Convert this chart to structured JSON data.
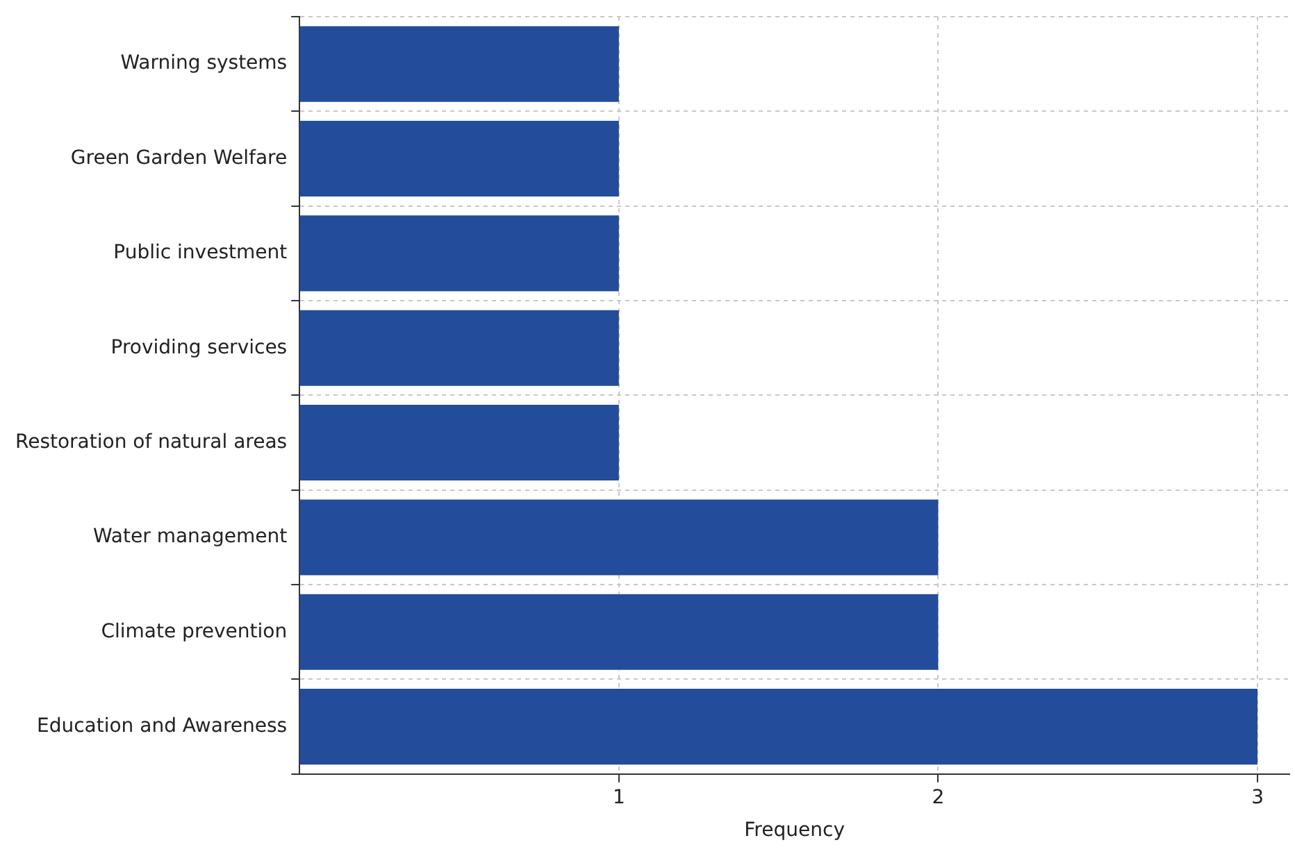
{
  "chart_data": {
    "type": "bar",
    "orientation": "horizontal",
    "xlabel": "Frequency",
    "categories": [
      "Warning systems",
      "Green Garden Welfare",
      "Public investment",
      "Providing services",
      "Restoration of natural areas",
      "Water management",
      "Climate prevention",
      "Education and Awareness"
    ],
    "values": [
      1,
      1,
      1,
      1,
      1,
      2,
      2,
      3
    ],
    "color": "#234d9a",
    "xlim": [
      0,
      3.1
    ],
    "xticks": [
      1,
      2,
      3
    ],
    "grid": true
  }
}
